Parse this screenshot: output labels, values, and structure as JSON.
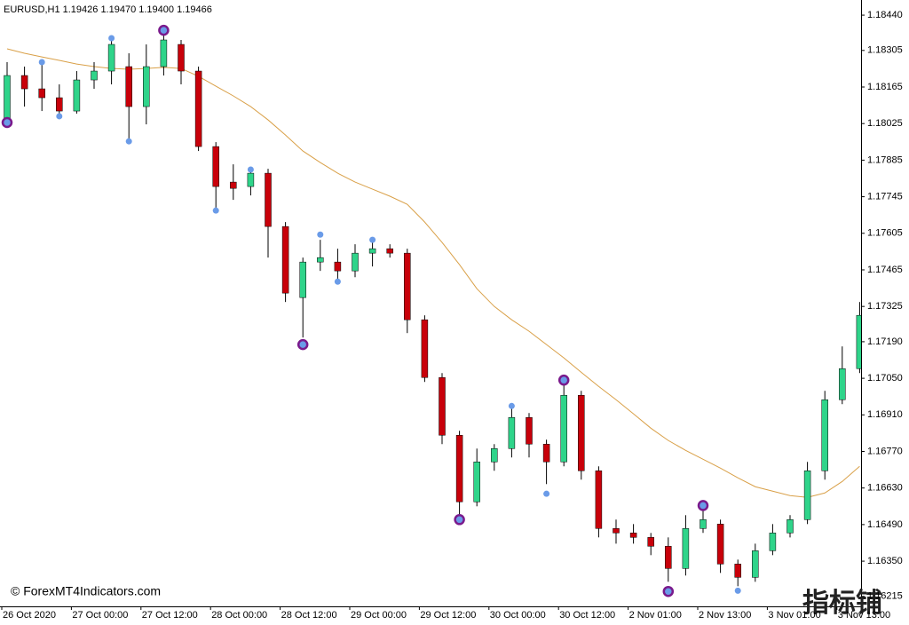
{
  "chart_data": {
    "type": "candlestick",
    "header": "EURUSD,H1  1.19426 1.19470 1.19400 1.19466",
    "watermark": "© ForexMT4Indicators.com",
    "logo": "指标铺",
    "up_color": "#2fd48a",
    "down_color": "#c8000a",
    "open": [
      1.18039,
      1.18209,
      1.18158,
      1.18124,
      1.18073,
      1.18192,
      1.18226,
      1.18243,
      1.1809,
      1.18243,
      1.18328,
      1.18226,
      1.17937,
      1.17801,
      1.17784,
      1.17835,
      1.17631,
      1.17359,
      1.17495,
      1.17495,
      1.17461,
      1.17529,
      1.17546,
      1.17529,
      1.17274,
      1.17053,
      1.16832,
      1.16577,
      1.1673,
      1.16781,
      1.169,
      1.16798,
      1.1673,
      1.16985,
      1.16696,
      1.16475,
      1.16458,
      1.16441,
      1.16407,
      1.16322,
      1.16475,
      1.16492,
      1.16339,
      1.16288,
      1.1639,
      1.16458,
      1.16509,
      1.16696,
      1.16968,
      1.17087
    ],
    "high": [
      1.1826,
      1.18243,
      1.1826,
      1.18175,
      1.18226,
      1.1826,
      1.18345,
      1.18294,
      1.18328,
      1.18379,
      1.18345,
      1.18243,
      1.17954,
      1.17869,
      1.17852,
      1.17852,
      1.17648,
      1.17512,
      1.1758,
      1.17546,
      1.17563,
      1.1758,
      1.17563,
      1.17546,
      1.17291,
      1.1707,
      1.16849,
      1.16781,
      1.16798,
      1.16934,
      1.16917,
      1.16815,
      1.17036,
      1.17002,
      1.16713,
      1.16509,
      1.16492,
      1.16458,
      1.16441,
      1.16526,
      1.1656,
      1.16509,
      1.16356,
      1.16417,
      1.16492,
      1.16526,
      1.1673,
      1.17002,
      1.17172,
      1.17342
    ],
    "low": [
      1.18022,
      1.1809,
      1.18073,
      1.18049,
      1.18063,
      1.18158,
      1.18175,
      1.17954,
      1.18022,
      1.18209,
      1.18175,
      1.1792,
      1.17699,
      1.17733,
      1.1775,
      1.17512,
      1.17342,
      1.17206,
      1.17461,
      1.17417,
      1.17437,
      1.17478,
      1.17512,
      1.17223,
      1.17036,
      1.16798,
      1.16526,
      1.1656,
      1.16696,
      1.16747,
      1.16747,
      1.16645,
      1.16713,
      1.16662,
      1.16441,
      1.16417,
      1.16417,
      1.16373,
      1.16271,
      1.16295,
      1.16458,
      1.16305,
      1.16254,
      1.16271,
      1.16373,
      1.16441,
      1.16492,
      1.16662,
      1.16951,
      1.1707
    ],
    "close": [
      1.18209,
      1.18158,
      1.18124,
      1.18073,
      1.18192,
      1.18226,
      1.18328,
      1.1809,
      1.18243,
      1.18345,
      1.18226,
      1.17937,
      1.17784,
      1.17777,
      1.17835,
      1.17631,
      1.17376,
      1.17495,
      1.17512,
      1.17461,
      1.17529,
      1.17546,
      1.17529,
      1.17274,
      1.17053,
      1.16832,
      1.16577,
      1.1673,
      1.16781,
      1.169,
      1.16798,
      1.1673,
      1.16985,
      1.16696,
      1.16475,
      1.16458,
      1.16441,
      1.16407,
      1.16322,
      1.16475,
      1.16509,
      1.16339,
      1.16288,
      1.1639,
      1.16458,
      1.16509,
      1.16696,
      1.16968,
      1.17087,
      1.17291
    ],
    "ma": {
      "color": "#d9a048",
      "values": [
        1.18311,
        1.18294,
        1.1828,
        1.18267,
        1.18253,
        1.18243,
        1.18236,
        1.18233,
        1.18236,
        1.1824,
        1.18236,
        1.18206,
        1.18168,
        1.18131,
        1.1809,
        1.18039,
        1.17981,
        1.1792,
        1.17876,
        1.17835,
        1.17801,
        1.17774,
        1.17747,
        1.17716,
        1.17648,
        1.1757,
        1.17485,
        1.17393,
        1.17325,
        1.17274,
        1.1723,
        1.17179,
        1.17128,
        1.17073,
        1.17019,
        1.16968,
        1.16914,
        1.16859,
        1.16812,
        1.16774,
        1.1674,
        1.16706,
        1.16669,
        1.16635,
        1.16618,
        1.16601,
        1.16594,
        1.16611,
        1.16655,
        1.16713
      ]
    },
    "fractals": {
      "color": "#6a9be8",
      "index": [
        2,
        3,
        6,
        7,
        12,
        14,
        18,
        19,
        21,
        29,
        31,
        42
      ],
      "values": [
        1.1826,
        1.18053,
        1.18352,
        1.17957,
        1.17692,
        1.17849,
        1.176,
        1.1742,
        1.1758,
        1.16944,
        1.16608,
        1.16237
      ]
    },
    "signals": {
      "color": "#6a9be8",
      "ring_color": "#7a1a8c",
      "index": [
        0,
        9,
        17,
        26,
        32,
        38,
        40
      ],
      "values": [
        1.18029,
        1.18382,
        1.17179,
        1.16509,
        1.17043,
        1.16234,
        1.16563
      ]
    },
    "xticks": [
      {
        "value": 0,
        "label": "26 Oct 2020"
      },
      {
        "value": 4,
        "label": "27 Oct 00:00"
      },
      {
        "value": 8,
        "label": "27 Oct 12:00"
      },
      {
        "value": 12,
        "label": "28 Oct 00:00"
      },
      {
        "value": 16,
        "label": "28 Oct 12:00"
      },
      {
        "value": 20,
        "label": "29 Oct 00:00"
      },
      {
        "value": 24,
        "label": "29 Oct 12:00"
      },
      {
        "value": 28,
        "label": "30 Oct 00:00"
      },
      {
        "value": 32,
        "label": "30 Oct 12:00"
      },
      {
        "value": 36,
        "label": "2 Nov 01:00"
      },
      {
        "value": 40,
        "label": "2 Nov 13:00"
      },
      {
        "value": 44,
        "label": "3 Nov 01:00"
      },
      {
        "value": 48,
        "label": "3 Nov 13:00"
      }
    ],
    "ylim": [
      1.16177,
      1.18498
    ],
    "yticks": [
      {
        "value": 1.1844,
        "label": "1.18440"
      },
      1.18305,
      1.18165,
      1.18025,
      1.17885,
      1.17745,
      1.17605,
      1.17465,
      1.17325,
      {
        "value": 1.1719,
        "label": "1.17190"
      },
      {
        "value": 1.1705,
        "label": "1.17050"
      },
      {
        "value": 1.1691,
        "label": "1.16910"
      },
      {
        "value": 1.1677,
        "label": "1.16770"
      },
      {
        "value": 1.1663,
        "label": "1.16630"
      },
      {
        "value": 1.1649,
        "label": "1.16490"
      },
      {
        "value": 1.1635,
        "label": "1.16350"
      },
      1.16215
    ]
  }
}
